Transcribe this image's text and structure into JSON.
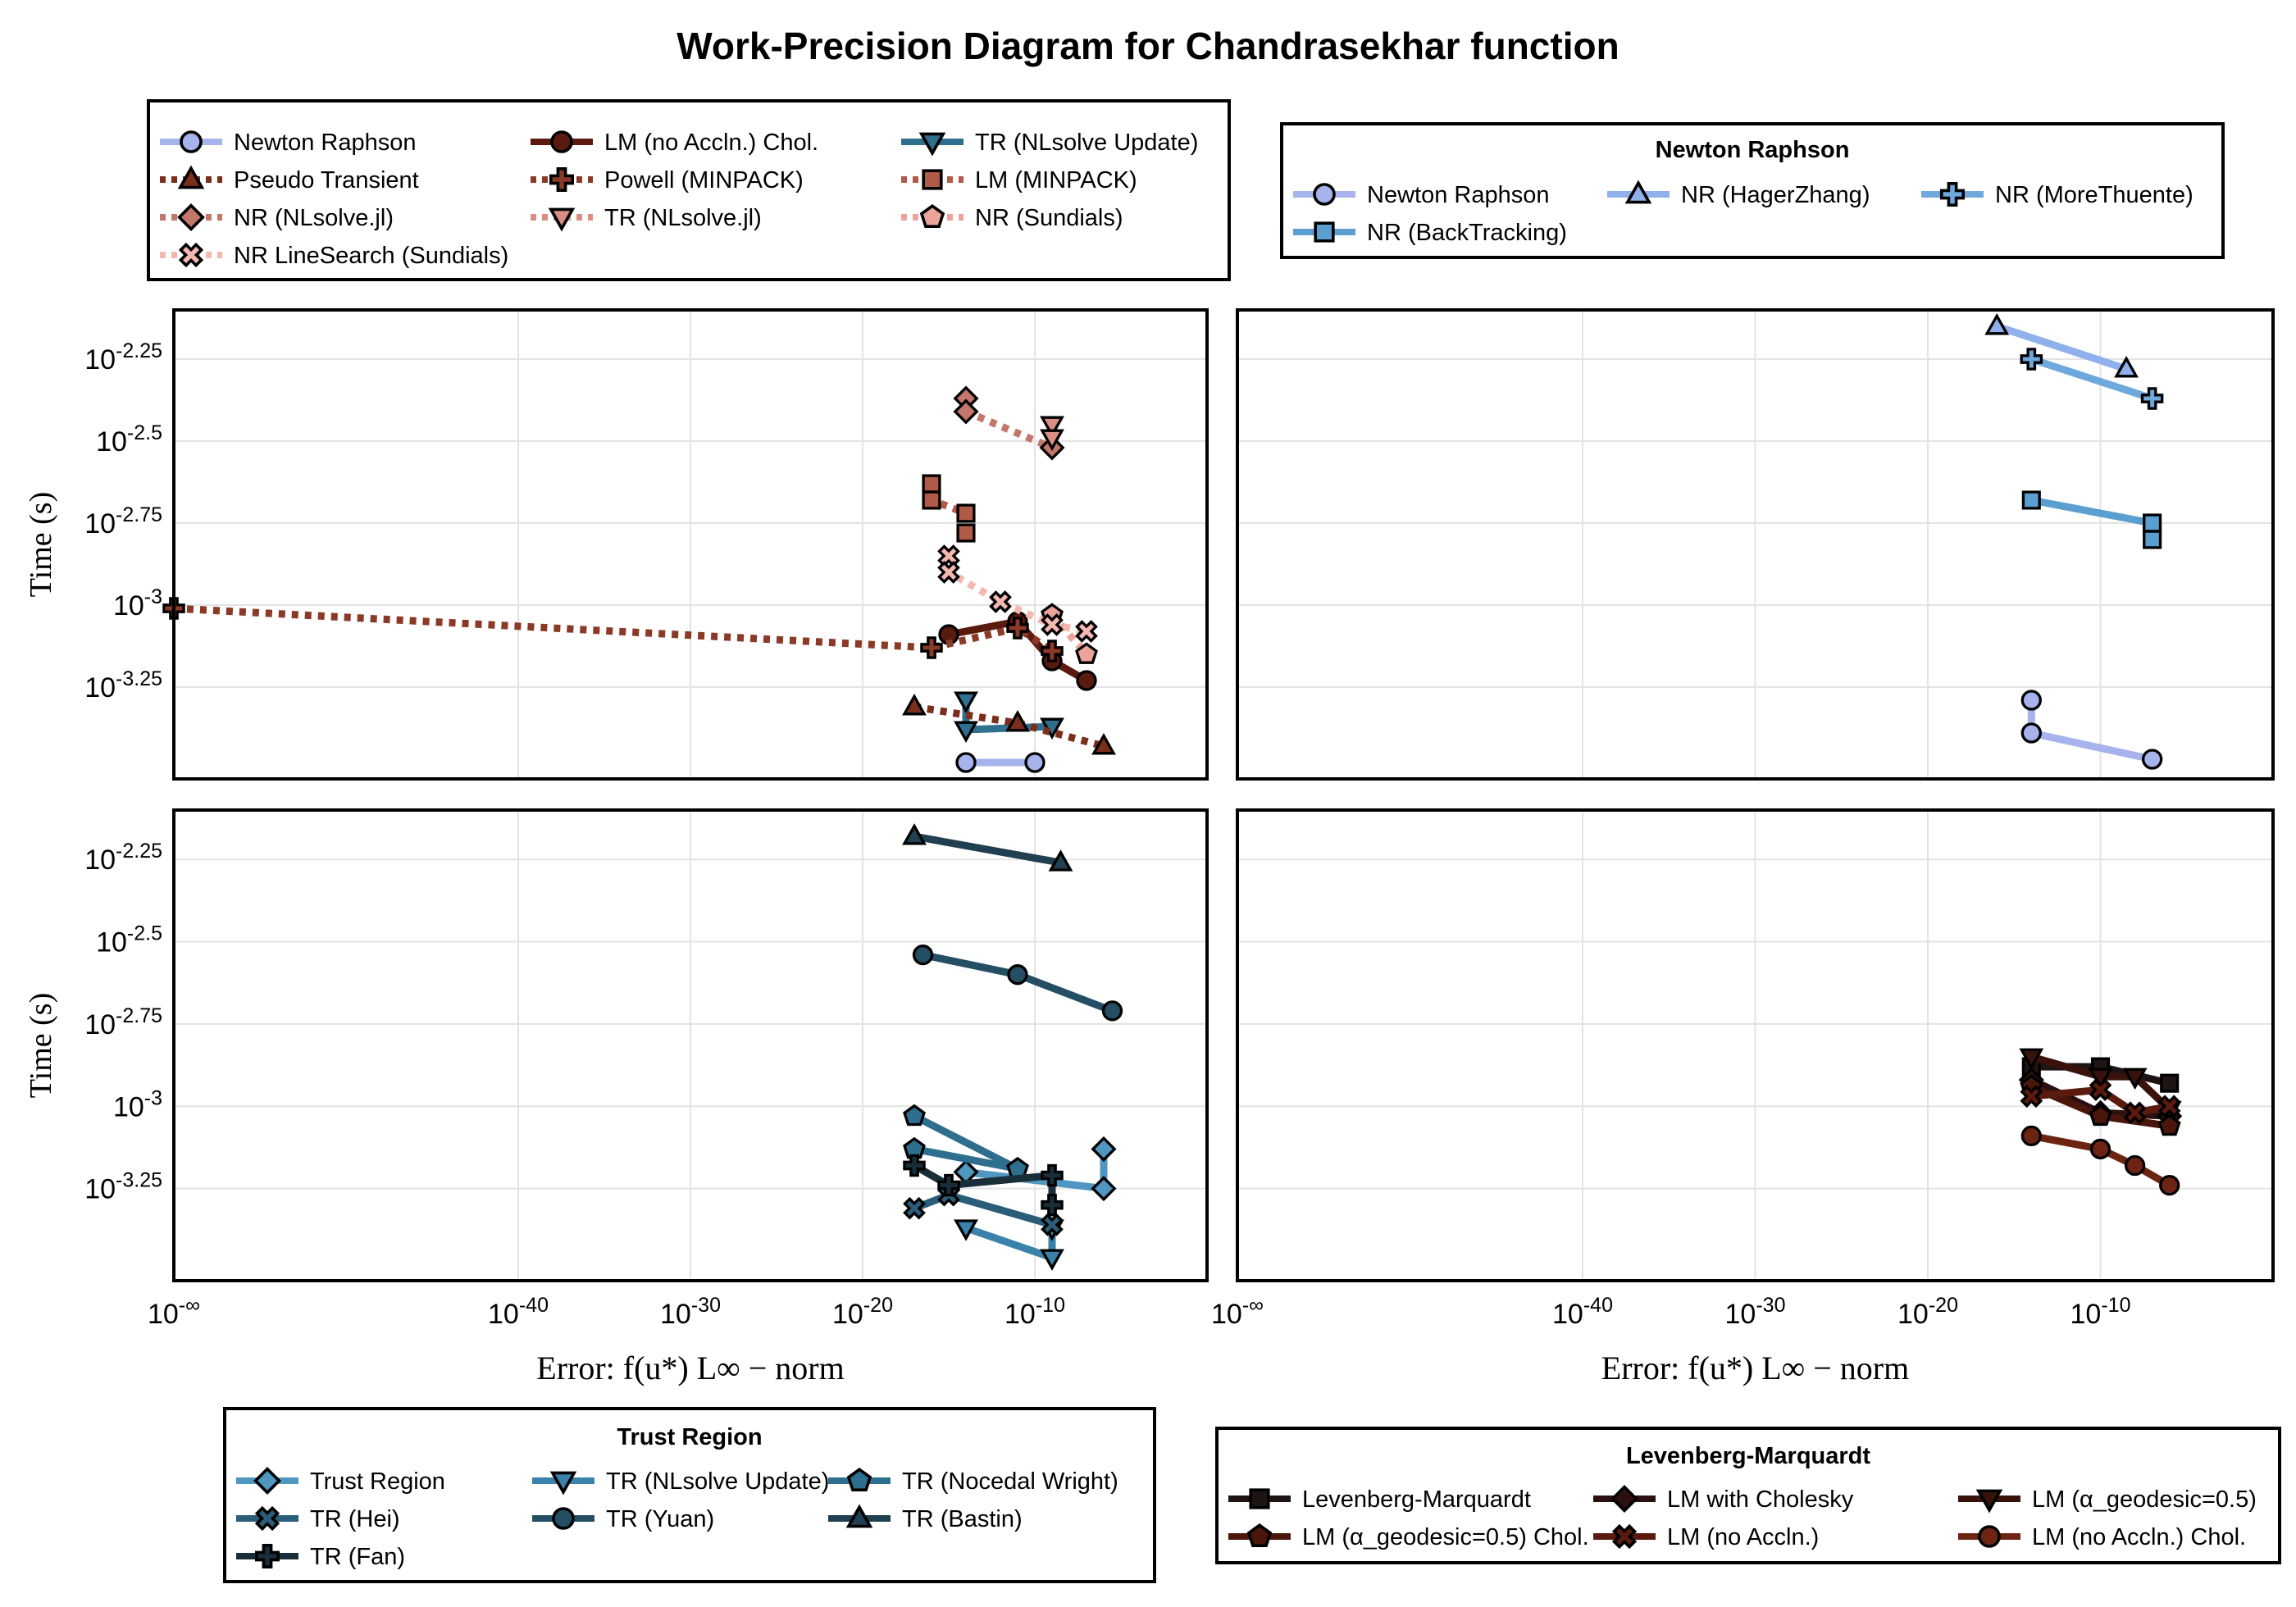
{
  "title": "Work-Precision Diagram for Chandrasekhar function",
  "legends": {
    "top_left": {
      "title": "",
      "entries": [
        {
          "label": "Newton Raphson",
          "color": "#a6b3ec",
          "marker": "circle",
          "dash": "solid"
        },
        {
          "label": "LM (no Accln.) Chol.",
          "color": "#5a1a0e",
          "marker": "circle",
          "dash": "solid"
        },
        {
          "label": "TR (NLsolve Update)",
          "color": "#2f6f8f",
          "marker": "triangle-down",
          "dash": "solid"
        },
        {
          "label": "Pseudo Transient",
          "color": "#7a2e1c",
          "marker": "triangle-up",
          "dash": "dotted"
        },
        {
          "label": "Powell (MINPACK)",
          "color": "#8b3a28",
          "marker": "cross",
          "dash": "dotted"
        },
        {
          "label": "LM (MINPACK)",
          "color": "#b05a4a",
          "marker": "square",
          "dash": "dotted"
        },
        {
          "label": "NR (NLsolve.jl)",
          "color": "#c2776a",
          "marker": "diamond",
          "dash": "dotted"
        },
        {
          "label": "TR (NLsolve.jl)",
          "color": "#d98f85",
          "marker": "triangle-down",
          "dash": "dotted"
        },
        {
          "label": "NR (Sundials)",
          "color": "#eba39a",
          "marker": "pentagon",
          "dash": "dotted"
        },
        {
          "label": "NR LineSearch (Sundials)",
          "color": "#f4b8b0",
          "marker": "xcross",
          "dash": "dotted"
        }
      ]
    },
    "top_right": {
      "title": "Newton Raphson",
      "entries": [
        {
          "label": "Newton Raphson",
          "color": "#a6b3ec",
          "marker": "circle",
          "dash": "solid"
        },
        {
          "label": "NR (HagerZhang)",
          "color": "#8fb0ea",
          "marker": "triangle-up",
          "dash": "solid"
        },
        {
          "label": "NR (MoreThuente)",
          "color": "#6fa8dc",
          "marker": "cross",
          "dash": "solid"
        },
        {
          "label": "NR (BackTracking)",
          "color": "#5b9fd0",
          "marker": "square",
          "dash": "solid"
        }
      ]
    },
    "bottom_left": {
      "title": "Trust Region",
      "entries": [
        {
          "label": "Trust Region",
          "color": "#4f96c0",
          "marker": "diamond",
          "dash": "solid"
        },
        {
          "label": "TR (NLsolve Update)",
          "color": "#3b82aa",
          "marker": "triangle-down",
          "dash": "solid"
        },
        {
          "label": "TR (Nocedal Wright)",
          "color": "#2e6f8f",
          "marker": "pentagon",
          "dash": "solid"
        },
        {
          "label": "TR (Hei)",
          "color": "#2a5d78",
          "marker": "xcross",
          "dash": "solid"
        },
        {
          "label": "TR (Yuan)",
          "color": "#244e63",
          "marker": "circle",
          "dash": "solid"
        },
        {
          "label": "TR (Bastin)",
          "color": "#203f50",
          "marker": "triangle-up",
          "dash": "solid"
        },
        {
          "label": "TR (Fan)",
          "color": "#1a2e3a",
          "marker": "cross",
          "dash": "solid"
        }
      ]
    },
    "bottom_right": {
      "title": "Levenberg-Marquardt",
      "entries": [
        {
          "label": "Levenberg-Marquardt",
          "color": "#1f1414",
          "marker": "square",
          "dash": "solid"
        },
        {
          "label": "LM with Cholesky",
          "color": "#2c1010",
          "marker": "diamond",
          "dash": "solid"
        },
        {
          "label": "LM (α_geodesic=0.5)",
          "color": "#3a120c",
          "marker": "triangle-down",
          "dash": "solid"
        },
        {
          "label": "LM (α_geodesic=0.5) Chol.",
          "color": "#4a160c",
          "marker": "pentagon",
          "dash": "solid"
        },
        {
          "label": "LM (no Accln.)",
          "color": "#5a1a0e",
          "marker": "xcross",
          "dash": "solid"
        },
        {
          "label": "LM (no Accln.) Chol.",
          "color": "#6e2412",
          "marker": "circle",
          "dash": "solid"
        }
      ]
    }
  },
  "chart_data": [
    {
      "type": "line",
      "panel": "top-left",
      "title": "",
      "xlabel": "",
      "ylabel": "Time (s)",
      "x_tick_labels": [],
      "y_tick_labels": [
        "10^-2.25",
        "10^-2.5",
        "10^-2.75",
        "10^-3",
        "10^-3.25"
      ],
      "xscale": "log10 with -∞ at left edge",
      "yscale": "log10",
      "xlim_log10": [
        -60,
        0
      ],
      "ylim_log10": [
        -3.53,
        -2.1
      ],
      "grid": true,
      "series": [
        {
          "name": "Newton Raphson",
          "color": "#a6b3ec",
          "marker": "circle",
          "dash": "solid",
          "points": [
            [
              -14,
              -3.48
            ],
            [
              -10,
              -3.48
            ]
          ]
        },
        {
          "name": "LM (no Accln.) Chol.",
          "color": "#5a1a0e",
          "marker": "circle",
          "dash": "solid",
          "points": [
            [
              -15,
              -3.09
            ],
            [
              -11,
              -3.05
            ],
            [
              -9,
              -3.17
            ],
            [
              -7,
              -3.23
            ]
          ]
        },
        {
          "name": "TR (NLsolve Update)",
          "color": "#2f6f8f",
          "marker": "triangle-down",
          "dash": "solid",
          "points": [
            [
              -14,
              -3.29
            ],
            [
              -14,
              -3.38
            ],
            [
              -9,
              -3.37
            ]
          ]
        },
        {
          "name": "Pseudo Transient",
          "color": "#7a2e1c",
          "marker": "triangle-up",
          "dash": "dotted",
          "points": [
            [
              -17,
              -3.31
            ],
            [
              -11,
              -3.36
            ],
            [
              -6,
              -3.43
            ]
          ]
        },
        {
          "name": "Powell (MINPACK)",
          "color": "#8b3a28",
          "marker": "cross",
          "dash": "dotted",
          "points": [
            [
              "-inf",
              -3.01
            ],
            [
              -16,
              -3.13
            ],
            [
              -11,
              -3.07
            ],
            [
              -9,
              -3.14
            ]
          ]
        },
        {
          "name": "LM (MINPACK)",
          "color": "#b05a4a",
          "marker": "square",
          "dash": "dotted",
          "points": [
            [
              -16,
              -2.63
            ],
            [
              -16,
              -2.68
            ],
            [
              -14,
              -2.72
            ],
            [
              -14,
              -2.78
            ]
          ]
        },
        {
          "name": "NR (NLsolve.jl)",
          "color": "#c2776a",
          "marker": "diamond",
          "dash": "dotted",
          "points": [
            [
              -14,
              -2.37
            ],
            [
              -14,
              -2.41
            ],
            [
              -9,
              -2.52
            ]
          ]
        },
        {
          "name": "TR (NLsolve.jl)",
          "color": "#d98f85",
          "marker": "triangle-down",
          "dash": "dotted",
          "points": [
            [
              -9,
              -2.45
            ],
            [
              -9,
              -2.49
            ]
          ]
        },
        {
          "name": "NR (Sundials)",
          "color": "#eba39a",
          "marker": "pentagon",
          "dash": "dotted",
          "points": [
            [
              -9,
              -3.03
            ],
            [
              -7,
              -3.15
            ]
          ]
        },
        {
          "name": "NR LineSearch (Sundials)",
          "color": "#f4b8b0",
          "marker": "xcross",
          "dash": "dotted",
          "points": [
            [
              -15,
              -2.85
            ],
            [
              -15,
              -2.9
            ],
            [
              -12,
              -2.99
            ],
            [
              -9,
              -3.06
            ],
            [
              -7,
              -3.08
            ]
          ]
        }
      ]
    },
    {
      "type": "line",
      "panel": "top-right",
      "title": "",
      "xlabel": "",
      "ylabel": "",
      "x_tick_labels": [],
      "y_tick_labels": [],
      "xscale": "log10 with -∞ at left edge",
      "yscale": "log10",
      "xlim_log10": [
        -60,
        0
      ],
      "ylim_log10": [
        -3.53,
        -2.1
      ],
      "grid": true,
      "series": [
        {
          "name": "Newton Raphson",
          "color": "#a6b3ec",
          "marker": "circle",
          "dash": "solid",
          "points": [
            [
              -14,
              -3.29
            ],
            [
              -14,
              -3.39
            ],
            [
              -7,
              -3.47
            ]
          ]
        },
        {
          "name": "NR (HagerZhang)",
          "color": "#8fb0ea",
          "marker": "triangle-up",
          "dash": "solid",
          "points": [
            [
              -16,
              -2.15
            ],
            [
              -8.5,
              -2.28
            ]
          ]
        },
        {
          "name": "NR (MoreThuente)",
          "color": "#6fa8dc",
          "marker": "cross",
          "dash": "solid",
          "points": [
            [
              -14,
              -2.25
            ],
            [
              -7,
              -2.37
            ]
          ]
        },
        {
          "name": "NR (BackTracking)",
          "color": "#5b9fd0",
          "marker": "square",
          "dash": "solid",
          "points": [
            [
              -14,
              -2.68
            ],
            [
              -7,
              -2.75
            ],
            [
              -7,
              -2.8
            ]
          ]
        }
      ]
    },
    {
      "type": "line",
      "panel": "bottom-left",
      "title": "",
      "xlabel": "Error: f(u*) L∞ − norm",
      "ylabel": "Time (s)",
      "x_tick_labels": [
        "10^-∞",
        "10^-40",
        "10^-30",
        "10^-20",
        "10^-10"
      ],
      "y_tick_labels": [
        "10^-2.25",
        "10^-2.5",
        "10^-2.75",
        "10^-3",
        "10^-3.25"
      ],
      "xscale": "log10 with -∞ at left edge",
      "yscale": "log10",
      "xlim_log10": [
        -60,
        0
      ],
      "ylim_log10": [
        -3.53,
        -2.1
      ],
      "grid": true,
      "series": [
        {
          "name": "Trust Region",
          "color": "#4f96c0",
          "marker": "diamond",
          "dash": "solid",
          "points": [
            [
              -14,
              -3.2
            ],
            [
              -6,
              -3.25
            ],
            [
              -6,
              -3.13
            ]
          ]
        },
        {
          "name": "TR (NLsolve Update)",
          "color": "#3b82aa",
          "marker": "triangle-down",
          "dash": "solid",
          "points": [
            [
              -14,
              -3.37
            ],
            [
              -9,
              -3.46
            ],
            [
              -9,
              -3.37
            ]
          ]
        },
        {
          "name": "TR (Nocedal Wright)",
          "color": "#2e6f8f",
          "marker": "pentagon",
          "dash": "solid",
          "points": [
            [
              -17,
              -3.03
            ],
            [
              -11,
              -3.19
            ],
            [
              -17,
              -3.13
            ]
          ]
        },
        {
          "name": "TR (Hei)",
          "color": "#2a5d78",
          "marker": "xcross",
          "dash": "solid",
          "points": [
            [
              -17,
              -3.31
            ],
            [
              -15,
              -3.27
            ],
            [
              -9,
              -3.36
            ]
          ]
        },
        {
          "name": "TR (Yuan)",
          "color": "#244e63",
          "marker": "circle",
          "dash": "solid",
          "points": [
            [
              -16.5,
              -2.54
            ],
            [
              -11,
              -2.6
            ],
            [
              -5.5,
              -2.71
            ]
          ]
        },
        {
          "name": "TR (Bastin)",
          "color": "#203f50",
          "marker": "triangle-up",
          "dash": "solid",
          "points": [
            [
              -17,
              -2.18
            ],
            [
              -8.5,
              -2.26
            ]
          ]
        },
        {
          "name": "TR (Fan)",
          "color": "#1a2e3a",
          "marker": "cross",
          "dash": "solid",
          "points": [
            [
              -17,
              -3.18
            ],
            [
              -15,
              -3.24
            ],
            [
              -9,
              -3.21
            ],
            [
              -9,
              -3.3
            ]
          ]
        }
      ]
    },
    {
      "type": "line",
      "panel": "bottom-right",
      "title": "",
      "xlabel": "Error: f(u*) L∞ − norm",
      "ylabel": "",
      "x_tick_labels": [
        "10^-∞",
        "10^-40",
        "10^-30",
        "10^-20",
        "10^-10"
      ],
      "y_tick_labels": [],
      "xscale": "log10 with -∞ at left edge",
      "yscale": "log10",
      "xlim_log10": [
        -60,
        0
      ],
      "ylim_log10": [
        -3.53,
        -2.1
      ],
      "grid": true,
      "series": [
        {
          "name": "Levenberg-Marquardt",
          "color": "#1f1414",
          "marker": "square",
          "dash": "solid",
          "points": [
            [
              -14,
              -2.88
            ],
            [
              -10,
              -2.88
            ],
            [
              -6,
              -2.93
            ]
          ]
        },
        {
          "name": "LM with Cholesky",
          "color": "#2c1010",
          "marker": "diamond",
          "dash": "solid",
          "points": [
            [
              -14,
              -2.92
            ],
            [
              -10,
              -3.02
            ],
            [
              -6,
              -3.03
            ]
          ]
        },
        {
          "name": "LM (α_geodesic=0.5)",
          "color": "#3a120c",
          "marker": "triangle-down",
          "dash": "solid",
          "points": [
            [
              -14,
              -2.85
            ],
            [
              -10,
              -2.91
            ],
            [
              -8,
              -2.91
            ],
            [
              -6,
              -3.01
            ]
          ]
        },
        {
          "name": "LM (α_geodesic=0.5) Chol.",
          "color": "#4a160c",
          "marker": "pentagon",
          "dash": "solid",
          "points": [
            [
              -14,
              -2.94
            ],
            [
              -10,
              -3.03
            ],
            [
              -6,
              -3.06
            ]
          ]
        },
        {
          "name": "LM (no Accln.)",
          "color": "#5a1a0e",
          "marker": "xcross",
          "dash": "solid",
          "points": [
            [
              -14,
              -2.97
            ],
            [
              -10,
              -2.95
            ],
            [
              -8,
              -3.02
            ],
            [
              -6,
              -3.0
            ]
          ]
        },
        {
          "name": "LM (no Accln.) Chol.",
          "color": "#6e2412",
          "marker": "circle",
          "dash": "solid",
          "points": [
            [
              -14,
              -3.09
            ],
            [
              -10,
              -3.13
            ],
            [
              -8,
              -3.18
            ],
            [
              -6,
              -3.24
            ]
          ]
        }
      ]
    }
  ]
}
